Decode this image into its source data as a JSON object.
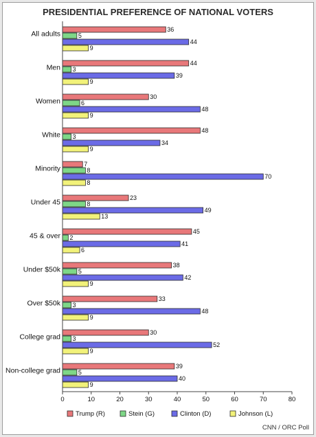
{
  "chart_data": {
    "type": "bar",
    "orientation": "horizontal",
    "title": "PRESIDENTIAL PREFERENCE OF NATIONAL VOTERS",
    "categories": [
      "All adults",
      "Men",
      "Women",
      "White",
      "Minority",
      "Under 45",
      "45 & over",
      "Under $50k",
      "Over $50k",
      "College grad",
      "Non-college grad"
    ],
    "series": [
      {
        "name": "Trump (R)",
        "color": "#e8787a",
        "values": [
          36,
          44,
          30,
          48,
          7,
          23,
          45,
          38,
          33,
          30,
          39
        ]
      },
      {
        "name": "Stein (G)",
        "color": "#7ed787",
        "values": [
          5,
          3,
          6,
          3,
          8,
          8,
          2,
          5,
          3,
          3,
          5
        ]
      },
      {
        "name": "Clinton (D)",
        "color": "#6b6be6",
        "values": [
          44,
          39,
          48,
          34,
          70,
          49,
          41,
          42,
          48,
          52,
          40
        ]
      },
      {
        "name": "Johnson (L)",
        "color": "#f2f27a",
        "values": [
          9,
          9,
          9,
          9,
          8,
          13,
          6,
          9,
          9,
          9,
          9
        ]
      }
    ],
    "xlim": [
      0,
      80
    ],
    "xticks": [
      0,
      10,
      20,
      30,
      40,
      50,
      60,
      70,
      80
    ],
    "grid": false,
    "data_labels": true,
    "legend_position": "bottom"
  },
  "source": "CNN / ORC Poll"
}
